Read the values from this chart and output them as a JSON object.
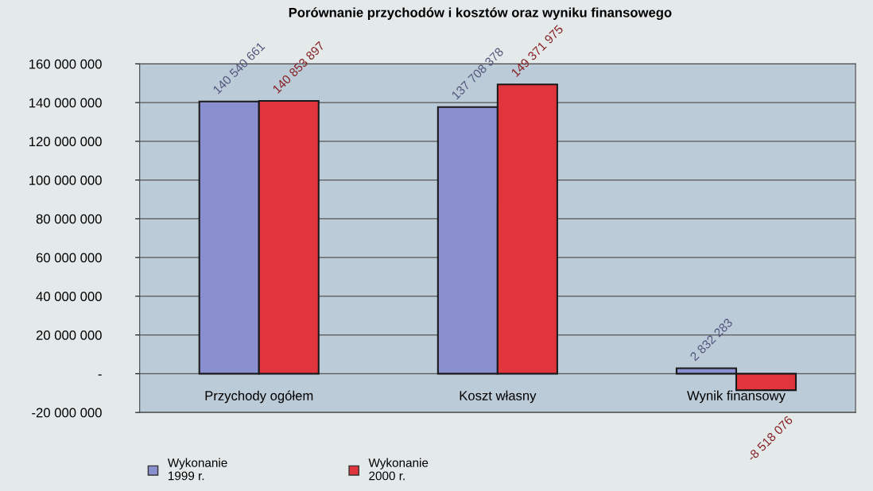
{
  "chart_data": {
    "type": "bar",
    "title": "Porównanie przychodów i kosztów oraz wyniku finansowego",
    "categories": [
      "Przychody ogółem",
      "Koszt własny",
      "Wynik finansowy"
    ],
    "series": [
      {
        "name": "Wykonanie\n1999 r.",
        "color": "#8a8fcf",
        "values": [
          140540661,
          137708378,
          2832283
        ],
        "value_labels": [
          "140 540 661",
          "137 708 378",
          "2 832 283"
        ]
      },
      {
        "name": "Wykonanie\n2000 r.",
        "color": "#e0353c",
        "values": [
          140853897,
          149371975,
          -8518076
        ],
        "value_labels": [
          "140 853 897",
          "149 371 975",
          "-8 518 076"
        ]
      }
    ],
    "ylim": [
      -20000000,
      160000000
    ],
    "yticks": [
      {
        "value": -20000000,
        "label": "-20 000 000"
      },
      {
        "value": 0,
        "label": "-"
      },
      {
        "value": 20000000,
        "label": "20 000 000"
      },
      {
        "value": 40000000,
        "label": "40 000 000"
      },
      {
        "value": 60000000,
        "label": "60 000 000"
      },
      {
        "value": 80000000,
        "label": "80 000 000"
      },
      {
        "value": 100000000,
        "label": "100 000 000"
      },
      {
        "value": 120000000,
        "label": "120 000 000"
      },
      {
        "value": 140000000,
        "label": "140 000 000"
      },
      {
        "value": 160000000,
        "label": "160 000 000"
      }
    ],
    "grid": "y",
    "legend": "bottom"
  }
}
